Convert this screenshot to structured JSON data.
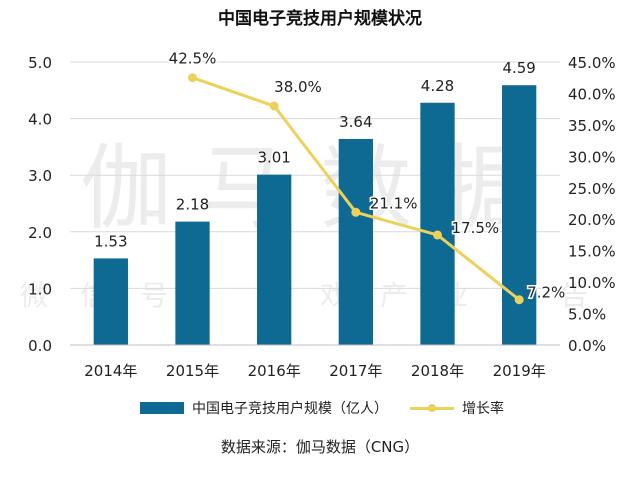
{
  "chart_data": {
    "type": "bar",
    "title": "中国电子竞技用户规模状况",
    "categories": [
      "2014年",
      "2015年",
      "2016年",
      "2017年",
      "2018年",
      "2019年"
    ],
    "series": [
      {
        "name": "中国电子竞技用户规模（亿人）",
        "type": "bar",
        "axis": "left",
        "values": [
          1.53,
          2.18,
          3.01,
          3.64,
          4.28,
          4.59
        ],
        "labels": [
          "1.53",
          "2.18",
          "3.01",
          "3.64",
          "4.28",
          "4.59"
        ],
        "color": "#0e6a92"
      },
      {
        "name": "增长率",
        "type": "line",
        "axis": "right",
        "values": [
          null,
          42.5,
          38.0,
          21.1,
          17.5,
          7.2
        ],
        "labels": [
          "",
          "42.5%",
          "38.0%",
          "21.1%",
          "17.5%",
          "7.2%"
        ],
        "color": "#ecd15a"
      }
    ],
    "ylim": [
      0,
      5
    ],
    "y_ticks": [
      "0.0",
      "1.0",
      "2.0",
      "3.0",
      "4.0",
      "5.0"
    ],
    "y2lim": [
      0,
      45
    ],
    "y2_ticks": [
      "0.0%",
      "5.0%",
      "10.0%",
      "15.0%",
      "20.0%",
      "25.0%",
      "30.0%",
      "35.0%",
      "40.0%",
      "45.0%"
    ],
    "grid": true,
    "legend_position": "bottom",
    "source": "数据来源：伽马数据（CNG）",
    "watermark": {
      "main": "伽马数据",
      "sub": "微信号：游戏产业报告"
    }
  }
}
